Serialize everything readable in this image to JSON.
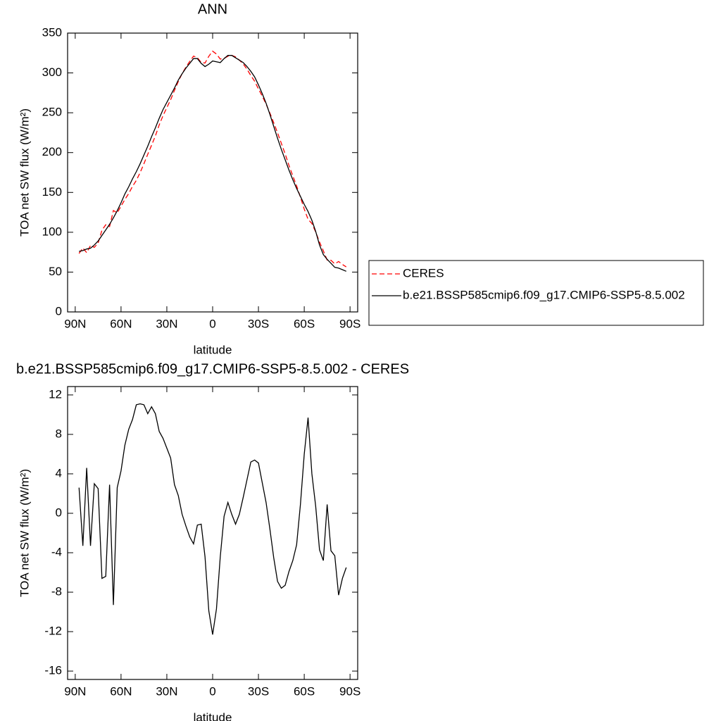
{
  "chart_data": [
    {
      "type": "line",
      "title": "ANN",
      "xlabel": "latitude",
      "ylabel": "TOA net SW flux (W/m²)",
      "x": [
        87.5,
        85,
        82.5,
        80,
        77.5,
        75,
        72.5,
        70,
        67.5,
        65,
        62.5,
        60,
        57.5,
        55,
        52.5,
        50,
        47.5,
        45,
        42.5,
        40,
        37.5,
        35,
        32.5,
        30,
        27.5,
        25,
        22.5,
        20,
        17.5,
        15,
        12.5,
        10,
        7.5,
        5,
        2.5,
        0,
        -2.5,
        -5,
        -7.5,
        -10,
        -12.5,
        -15,
        -17.5,
        -20,
        -22.5,
        -25,
        -27.5,
        -30,
        -32.5,
        -35,
        -37.5,
        -40,
        -42.5,
        -45,
        -47.5,
        -50,
        -52.5,
        -55,
        -57.5,
        -60,
        -62.5,
        -65,
        -67.5,
        -70,
        -72.5,
        -75,
        -77.5,
        -80,
        -82.5,
        -85,
        -87.5
      ],
      "series": [
        {
          "name": "CERES",
          "color": "#ff0000",
          "linestyle": "dashed",
          "values": [
            73.4,
            80.3,
            74.4,
            83.3,
            81,
            86.5,
            102.6,
            109.4,
            107.1,
            127.3,
            124.4,
            132.7,
            141.1,
            148.5,
            157.5,
            165,
            174.9,
            186,
            197.9,
            209.2,
            220.9,
            234.7,
            246.4,
            256.4,
            266.4,
            278.1,
            289.2,
            299.1,
            307.3,
            314.4,
            321.1,
            319.2,
            313.1,
            312.4,
            320.9,
            327.3,
            323.7,
            317.4,
            318.3,
            320.9,
            322.1,
            320.1,
            316.1,
            311.4,
            304.6,
            296.8,
            289.6,
            279.9,
            270.9,
            260.9,
            249.6,
            237.5,
            224.9,
            211.6,
            198.3,
            183.9,
            170.8,
            158.2,
            144.1,
            129,
            116.3,
            111,
            100.3,
            87.7,
            76.8,
            65.1,
            64.8,
            60.3,
            63.3,
            59.6,
            56.5
          ]
        },
        {
          "name": "b.e21.BSSP585cmip6.f09_g17.CMIP6-SSP5-8.5.002",
          "color": "#000000",
          "linestyle": "solid",
          "values": [
            76,
            77,
            79,
            80,
            84,
            89,
            96,
            103,
            110,
            118,
            127,
            137,
            148,
            157,
            167,
            176,
            186,
            197,
            208,
            220,
            231,
            243,
            254,
            263,
            272,
            281,
            291,
            299,
            306,
            312,
            318,
            318,
            312,
            308,
            311,
            315,
            314,
            313,
            318,
            322,
            322,
            319,
            316,
            313,
            308,
            302,
            295,
            285,
            274,
            262,
            248,
            233,
            218,
            204,
            191,
            178,
            166,
            155,
            145,
            135,
            126,
            115,
            101,
            84,
            72,
            66,
            61,
            56,
            55,
            53,
            51
          ]
        }
      ],
      "xlim": [
        95,
        -95
      ],
      "xticks": [
        {
          "value": 90,
          "label": "90N"
        },
        {
          "value": 60,
          "label": "60N"
        },
        {
          "value": 30,
          "label": "30N"
        },
        0,
        {
          "value": -30,
          "label": "30S"
        },
        {
          "value": -60,
          "label": "60S"
        },
        {
          "value": -90,
          "label": "90S"
        }
      ],
      "ylim": [
        0,
        350
      ],
      "yticks": [
        0,
        50,
        100,
        150,
        200,
        250,
        300,
        350
      ],
      "legend": "right"
    },
    {
      "type": "line",
      "title": "b.e21.BSSP585cmip6.f09_g17.CMIP6-SSP5-8.5.002 - CERES",
      "xlabel": "latitude",
      "ylabel": "TOA net SW flux (W/m²)",
      "x": [
        87.5,
        85,
        82.5,
        80,
        77.5,
        75,
        72.5,
        70,
        67.5,
        65,
        62.5,
        60,
        57.5,
        55,
        52.5,
        50,
        47.5,
        45,
        42.5,
        40,
        37.5,
        35,
        32.5,
        30,
        27.5,
        25,
        22.5,
        20,
        17.5,
        15,
        12.5,
        10,
        7.5,
        5,
        2.5,
        0,
        -2.5,
        -5,
        -7.5,
        -10,
        -12.5,
        -15,
        -17.5,
        -20,
        -22.5,
        -25,
        -27.5,
        -30,
        -32.5,
        -35,
        -37.5,
        -40,
        -42.5,
        -45,
        -47.5,
        -50,
        -52.5,
        -55,
        -57.5,
        -60,
        -62.5,
        -65,
        -67.5,
        -70,
        -72.5,
        -75,
        -77.5,
        -80,
        -82.5,
        -85,
        -87.5
      ],
      "series": [
        {
          "color": "#000000",
          "linestyle": "solid",
          "values": [
            2.6,
            -3.3,
            4.6,
            -3.3,
            3.0,
            2.5,
            -6.6,
            -6.4,
            2.9,
            -9.3,
            2.6,
            4.3,
            6.9,
            8.5,
            9.5,
            11,
            11.1,
            11,
            10.1,
            10.8,
            10.1,
            8.3,
            7.6,
            6.6,
            5.6,
            2.9,
            1.8,
            -0.1,
            -1.3,
            -2.4,
            -3.1,
            -1.2,
            -1.1,
            -4.4,
            -9.9,
            -12.3,
            -9.7,
            -4.4,
            -0.3,
            1.1,
            -0.1,
            -1.1,
            -0.1,
            1.6,
            3.4,
            5.2,
            5.4,
            5.1,
            3.1,
            1.1,
            -1.6,
            -4.5,
            -6.9,
            -7.6,
            -7.3,
            -5.9,
            -4.8,
            -3.2,
            0.9,
            6.0,
            9.7,
            4.0,
            0.7,
            -3.7,
            -4.8,
            0.9,
            -3.8,
            -4.3,
            -8.3,
            -6.6,
            -5.5
          ]
        }
      ],
      "xlim": [
        95,
        -95
      ],
      "xticks": [
        {
          "value": 90,
          "label": "90N"
        },
        {
          "value": 60,
          "label": "60N"
        },
        {
          "value": 30,
          "label": "30N"
        },
        0,
        {
          "value": -30,
          "label": "30S"
        },
        {
          "value": -60,
          "label": "60S"
        },
        {
          "value": -90,
          "label": "90S"
        }
      ],
      "ylim": [
        -16.85,
        12.85
      ],
      "yticks": [
        12,
        8,
        4,
        0,
        -4,
        -8,
        -12,
        -16
      ]
    }
  ]
}
